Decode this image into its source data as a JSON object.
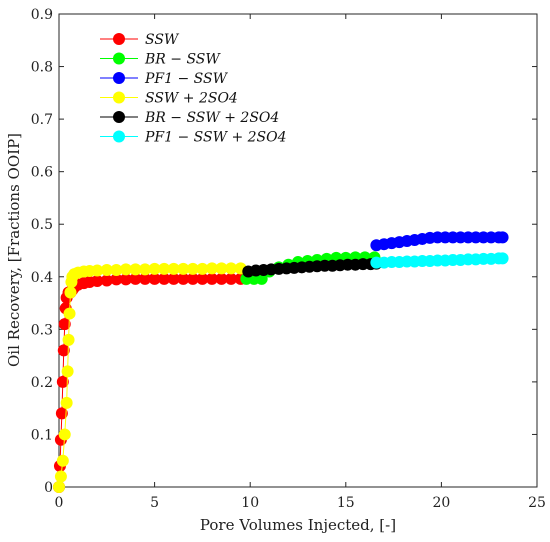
{
  "chart_data": {
    "type": "scatter",
    "title": "",
    "xlabel": "Pore Volumes Injected, [-]",
    "ylabel": "Oil Recovery, [Fractions OOIP]",
    "xlim": [
      0,
      25
    ],
    "ylim": [
      0,
      0.9
    ],
    "xticks": [
      "0",
      "5",
      "10",
      "15",
      "20",
      "25"
    ],
    "yticks": [
      "0",
      "0.1",
      "0.2",
      "0.3",
      "0.4",
      "0.5",
      "0.6",
      "0.7",
      "0.8",
      "0.9"
    ],
    "grid": false,
    "legend_position": "top-left",
    "series": [
      {
        "name": "SSW",
        "color": "#ff0000",
        "x": [
          0.0,
          0.05,
          0.1,
          0.15,
          0.2,
          0.25,
          0.3,
          0.35,
          0.4,
          0.5,
          0.6,
          0.7,
          0.8,
          1.0,
          1.3,
          1.6,
          2.0,
          2.5,
          3.0,
          3.5,
          4.0,
          4.5,
          5.0,
          5.5,
          6.0,
          6.5,
          7.0,
          7.5,
          8.0,
          8.5,
          9.0,
          9.5
        ],
        "y": [
          0.0,
          0.04,
          0.09,
          0.14,
          0.2,
          0.26,
          0.31,
          0.34,
          0.36,
          0.37,
          0.37,
          0.375,
          0.38,
          0.385,
          0.388,
          0.39,
          0.392,
          0.393,
          0.395,
          0.395,
          0.396,
          0.396,
          0.396,
          0.396,
          0.396,
          0.396,
          0.396,
          0.396,
          0.396,
          0.396,
          0.396,
          0.396
        ]
      },
      {
        "name": "BR − SSW",
        "color": "#00ff00",
        "x": [
          9.8,
          10.2,
          10.6,
          11.0,
          11.5,
          12.0,
          12.5,
          13.0,
          13.5,
          14.0,
          14.5,
          15.0,
          15.5,
          16.0,
          16.5
        ],
        "y": [
          0.396,
          0.396,
          0.396,
          0.41,
          0.418,
          0.423,
          0.428,
          0.43,
          0.432,
          0.434,
          0.436,
          0.436,
          0.437,
          0.437,
          0.437
        ]
      },
      {
        "name": "PF1 − SSW",
        "color": "#0000ff",
        "x": [
          16.6,
          17.0,
          17.4,
          17.8,
          18.2,
          18.6,
          19.0,
          19.4,
          19.8,
          20.2,
          20.6,
          21.0,
          21.4,
          21.8,
          22.2,
          22.6,
          23.0,
          23.2
        ],
        "y": [
          0.46,
          0.462,
          0.464,
          0.466,
          0.468,
          0.47,
          0.472,
          0.474,
          0.475,
          0.475,
          0.475,
          0.475,
          0.475,
          0.475,
          0.475,
          0.475,
          0.475,
          0.475
        ]
      },
      {
        "name": "SSW + 2SO4",
        "color": "#ffff00",
        "x": [
          0.0,
          0.1,
          0.2,
          0.3,
          0.4,
          0.45,
          0.5,
          0.55,
          0.6,
          0.65,
          0.7,
          0.8,
          1.0,
          1.3,
          1.6,
          2.0,
          2.5,
          3.0,
          3.5,
          4.0,
          4.5,
          5.0,
          5.5,
          6.0,
          6.5,
          7.0,
          7.5,
          8.0,
          8.5,
          9.0,
          9.5
        ],
        "y": [
          0.0,
          0.02,
          0.05,
          0.1,
          0.16,
          0.22,
          0.28,
          0.33,
          0.37,
          0.39,
          0.4,
          0.405,
          0.408,
          0.41,
          0.411,
          0.412,
          0.413,
          0.413,
          0.414,
          0.414,
          0.414,
          0.415,
          0.415,
          0.415,
          0.415,
          0.415,
          0.415,
          0.416,
          0.416,
          0.416,
          0.416
        ]
      },
      {
        "name": "BR − SSW + 2SO4",
        "color": "#000000",
        "x": [
          9.9,
          10.3,
          10.7,
          11.1,
          11.5,
          11.9,
          12.3,
          12.7,
          13.1,
          13.5,
          13.9,
          14.3,
          14.7,
          15.1,
          15.5,
          15.9,
          16.3,
          16.6
        ],
        "y": [
          0.41,
          0.412,
          0.413,
          0.414,
          0.415,
          0.416,
          0.417,
          0.418,
          0.419,
          0.42,
          0.421,
          0.421,
          0.422,
          0.423,
          0.423,
          0.424,
          0.424,
          0.425
        ]
      },
      {
        "name": "PF1 − SSW + 2SO4",
        "color": "#00ffff",
        "x": [
          16.6,
          17.0,
          17.4,
          17.8,
          18.2,
          18.6,
          19.0,
          19.4,
          19.8,
          20.2,
          20.6,
          21.0,
          21.4,
          21.8,
          22.2,
          22.6,
          23.0,
          23.2
        ],
        "y": [
          0.427,
          0.427,
          0.428,
          0.428,
          0.429,
          0.429,
          0.43,
          0.43,
          0.431,
          0.431,
          0.432,
          0.432,
          0.433,
          0.433,
          0.434,
          0.434,
          0.435,
          0.435
        ]
      }
    ]
  }
}
